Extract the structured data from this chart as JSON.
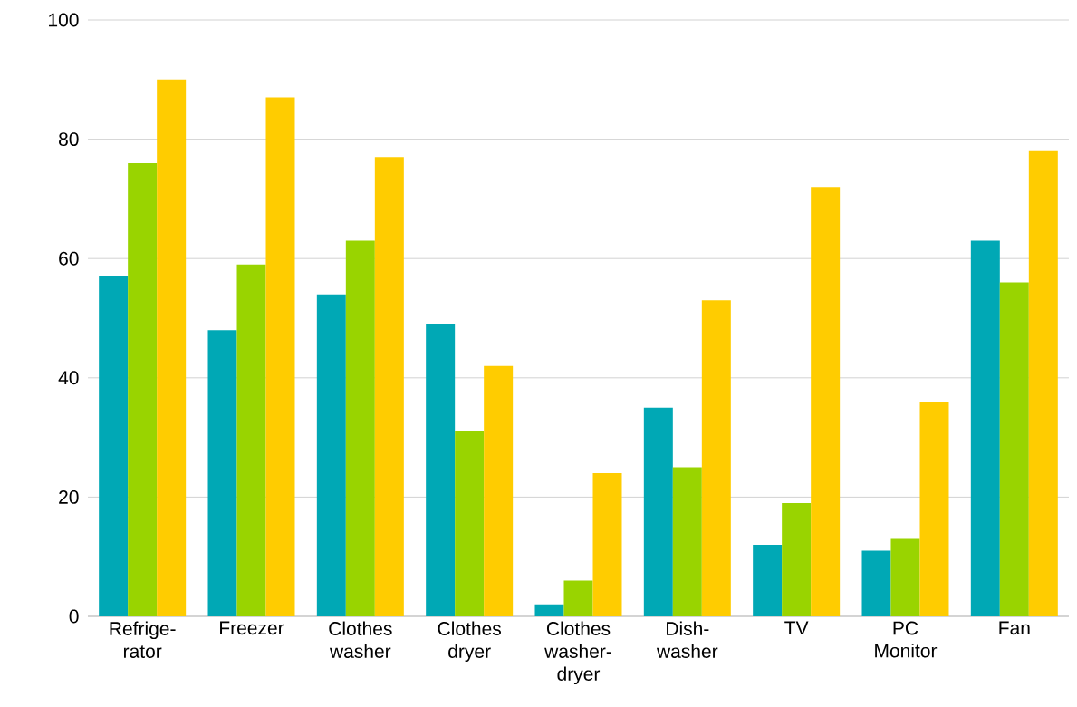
{
  "chart_data": {
    "type": "bar",
    "categories": [
      "Refrige- rator",
      "Freezer",
      "Clothes washer",
      "Clothes dryer",
      "Clothes washer- dryer",
      "Dish- washer",
      "TV",
      "PC Monitor",
      "Fan"
    ],
    "series": [
      {
        "color": "#00a8b5",
        "values": [
          57,
          48,
          54,
          49,
          2,
          35,
          12,
          11,
          63
        ]
      },
      {
        "color": "#99d400",
        "values": [
          76,
          59,
          63,
          31,
          6,
          25,
          19,
          13,
          56
        ]
      },
      {
        "color": "#ffcc00",
        "values": [
          90,
          87,
          77,
          42,
          24,
          53,
          72,
          36,
          78
        ]
      }
    ],
    "ylim": [
      0,
      100
    ],
    "yticks": [
      0,
      20,
      40,
      60,
      80,
      100
    ],
    "grid": "y"
  }
}
